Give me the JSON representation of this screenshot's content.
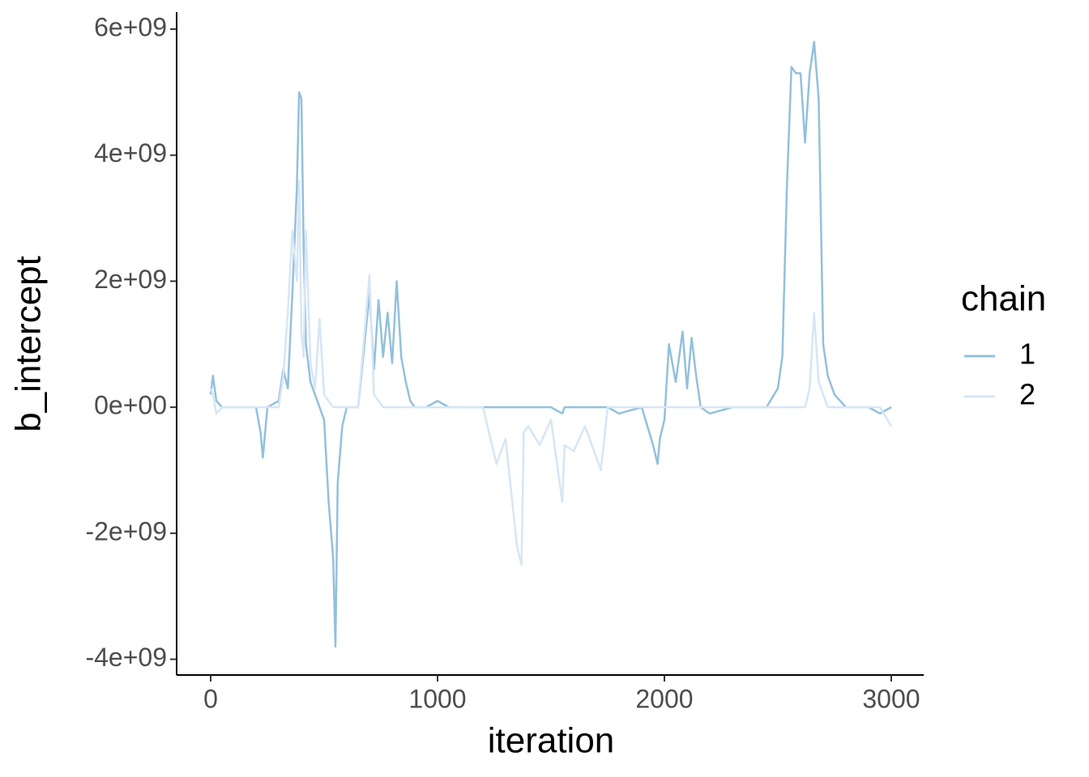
{
  "chart_data": {
    "type": "line",
    "x_label": "iteration",
    "y_label": "b_intercept",
    "legend_title": "chain",
    "legend_position": "right",
    "x": [
      0,
      10,
      25,
      50,
      100,
      150,
      200,
      220,
      230,
      250,
      300,
      320,
      340,
      360,
      380,
      390,
      400,
      410,
      420,
      440,
      460,
      480,
      500,
      520,
      540,
      550,
      560,
      580,
      600,
      650,
      700,
      720,
      740,
      760,
      780,
      800,
      820,
      840,
      860,
      880,
      900,
      950,
      1000,
      1050,
      1100,
      1200,
      1260,
      1300,
      1350,
      1370,
      1380,
      1400,
      1450,
      1500,
      1550,
      1560,
      1600,
      1650,
      1700,
      1720,
      1750,
      1800,
      1900,
      1950,
      1970,
      1980,
      2000,
      2020,
      2050,
      2080,
      2100,
      2120,
      2140,
      2160,
      2200,
      2300,
      2400,
      2450,
      2500,
      2520,
      2540,
      2560,
      2580,
      2600,
      2620,
      2640,
      2660,
      2680,
      2700,
      2720,
      2750,
      2800,
      2850,
      2900,
      2950,
      3000
    ],
    "series": [
      {
        "name": "1",
        "color": "#93c0dc",
        "values": [
          200000000.0,
          500000000.0,
          100000000.0,
          0,
          0,
          0,
          0,
          -400000000.0,
          -800000000.0,
          0,
          100000000.0,
          600000000.0,
          300000000.0,
          1800000000.0,
          3500000000.0,
          5000000000.0,
          4900000000.0,
          2500000000.0,
          1000000000.0,
          400000000.0,
          200000000.0,
          0,
          -200000000.0,
          -1500000000.0,
          -2400000000.0,
          -3800000000.0,
          -1200000000.0,
          -300000000.0,
          0,
          0,
          1800000000.0,
          600000000.0,
          1700000000.0,
          800000000.0,
          1500000000.0,
          700000000.0,
          2000000000.0,
          800000000.0,
          400000000.0,
          100000000.0,
          0,
          0,
          100000000.0,
          0,
          0,
          0,
          0,
          0,
          0,
          0,
          0,
          0,
          0,
          0,
          -100000000.0,
          0,
          0,
          0,
          0,
          0,
          0,
          -100000000.0,
          0,
          -600000000.0,
          -900000000.0,
          -500000000.0,
          -200000000.0,
          1000000000.0,
          400000000.0,
          1200000000.0,
          300000000.0,
          1100000000.0,
          500000000.0,
          0,
          -100000000.0,
          0,
          0,
          0,
          300000000.0,
          800000000.0,
          3500000000.0,
          5400000000.0,
          5300000000.0,
          5300000000.0,
          4200000000.0,
          5300000000.0,
          5800000000.0,
          4900000000.0,
          1000000000.0,
          500000000.0,
          200000000.0,
          0,
          0,
          0,
          -100000000.0,
          0
        ]
      },
      {
        "name": "2",
        "color": "#d6e6f4",
        "values": [
          300000000.0,
          200000000.0,
          -100000000.0,
          0,
          0,
          0,
          0,
          0,
          0,
          0,
          0,
          500000000.0,
          1500000000.0,
          2800000000.0,
          2000000000.0,
          3600000000.0,
          1200000000.0,
          800000000.0,
          2800000000.0,
          700000000.0,
          300000000.0,
          1400000000.0,
          200000000.0,
          100000000.0,
          0,
          0,
          0,
          0,
          0,
          0,
          2100000000.0,
          200000000.0,
          100000000.0,
          0,
          0,
          0,
          0,
          0,
          0,
          0,
          0,
          0,
          0,
          0,
          0,
          0,
          -900000000.0,
          -500000000.0,
          -2200000000.0,
          -2500000000.0,
          -400000000.0,
          -300000000.0,
          -600000000.0,
          -200000000.0,
          -1500000000.0,
          -600000000.0,
          -700000000.0,
          -300000000.0,
          -800000000.0,
          -1000000000.0,
          0,
          0,
          0,
          0,
          0,
          0,
          0,
          0,
          0,
          0,
          0,
          0,
          0,
          0,
          0,
          0,
          0,
          0,
          0,
          0,
          0,
          0,
          0,
          0,
          0,
          300000000.0,
          1500000000.0,
          400000000.0,
          200000000.0,
          0,
          0,
          0,
          0,
          0,
          0,
          -300000000.0
        ]
      }
    ],
    "xlim": [
      -150,
      3143
    ],
    "xticks": [
      0,
      1000,
      2000,
      3000
    ],
    "ylim": [
      -4250000000.0,
      6270000000.0
    ],
    "yticks": [
      {
        "value": -4000000000.0,
        "label": "-4e+09"
      },
      {
        "value": -2000000000.0,
        "label": "-2e+09"
      },
      {
        "value": 0,
        "label": "0e+00"
      },
      {
        "value": 2000000000.0,
        "label": "2e+09"
      },
      {
        "value": 4000000000.0,
        "label": "4e+09"
      },
      {
        "value": 6000000000.0,
        "label": "6e+09"
      }
    ],
    "grid": false
  }
}
